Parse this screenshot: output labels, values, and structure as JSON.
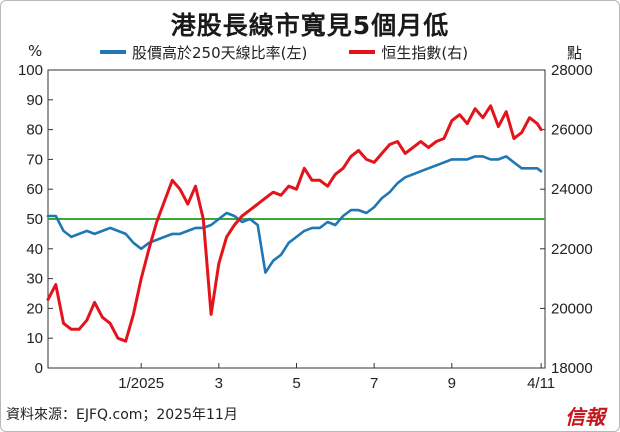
{
  "title": "港股長線市寬見5個月低",
  "source": "資料來源：EJFQ.com；2025年11月",
  "logo": "信報",
  "chart_data": {
    "type": "line",
    "title": "港股長線市寬見5個月低",
    "left_unit": "%",
    "right_unit": "點",
    "x_tick_labels": [
      "1/2025",
      "3",
      "5",
      "7",
      "9",
      "4/11"
    ],
    "x_tick_pos": [
      0.0,
      2.0,
      4.0,
      6.0,
      8.0,
      10.3
    ],
    "x_range": [
      -2.4,
      10.4
    ],
    "y_left": {
      "range": [
        0,
        100
      ],
      "ticks": [
        0,
        10,
        20,
        30,
        40,
        50,
        60,
        70,
        80,
        90,
        100
      ]
    },
    "y_right": {
      "range": [
        18000,
        28000
      ],
      "ticks": [
        18000,
        20000,
        22000,
        24000,
        26000,
        28000
      ]
    },
    "reference_line": {
      "value": 50,
      "axis": "left",
      "color": "#3aa935"
    },
    "grid": false,
    "legend_position": "top",
    "series": [
      {
        "name": "股價高於250天線比率(左)",
        "axis": "left",
        "color": "#1f77b4",
        "x": [
          -2.4,
          -2.2,
          -2.0,
          -1.8,
          -1.6,
          -1.4,
          -1.2,
          -1.0,
          -0.8,
          -0.6,
          -0.4,
          -0.2,
          0.0,
          0.2,
          0.4,
          0.6,
          0.8,
          1.0,
          1.2,
          1.4,
          1.6,
          1.8,
          2.0,
          2.2,
          2.4,
          2.6,
          2.8,
          3.0,
          3.2,
          3.4,
          3.6,
          3.8,
          4.0,
          4.2,
          4.4,
          4.6,
          4.8,
          5.0,
          5.2,
          5.4,
          5.6,
          5.8,
          6.0,
          6.2,
          6.4,
          6.6,
          6.8,
          7.0,
          7.2,
          7.4,
          7.6,
          7.8,
          8.0,
          8.2,
          8.4,
          8.6,
          8.8,
          9.0,
          9.2,
          9.4,
          9.6,
          9.8,
          10.0,
          10.2,
          10.3
        ],
        "y": [
          51,
          51,
          46,
          44,
          45,
          46,
          45,
          46,
          47,
          46,
          45,
          42,
          40,
          42,
          43,
          44,
          45,
          45,
          46,
          47,
          47,
          48,
          50,
          52,
          51,
          49,
          50,
          48,
          32,
          36,
          38,
          42,
          44,
          46,
          47,
          47,
          49,
          48,
          51,
          53,
          53,
          52,
          54,
          57,
          59,
          62,
          64,
          65,
          66,
          67,
          68,
          69,
          70,
          70,
          70,
          71,
          71,
          70,
          70,
          71,
          69,
          67,
          67,
          67,
          66
        ]
      },
      {
        "name": "恒生指數(右)",
        "axis": "right",
        "color": "#e3141c",
        "x": [
          -2.4,
          -2.2,
          -2.0,
          -1.8,
          -1.6,
          -1.4,
          -1.2,
          -1.0,
          -0.8,
          -0.6,
          -0.4,
          -0.2,
          0.0,
          0.2,
          0.4,
          0.6,
          0.8,
          1.0,
          1.2,
          1.4,
          1.6,
          1.8,
          2.0,
          2.2,
          2.4,
          2.6,
          2.8,
          3.0,
          3.2,
          3.4,
          3.6,
          3.8,
          4.0,
          4.2,
          4.4,
          4.6,
          4.8,
          5.0,
          5.2,
          5.4,
          5.6,
          5.8,
          6.0,
          6.2,
          6.4,
          6.6,
          6.8,
          7.0,
          7.2,
          7.4,
          7.6,
          7.8,
          8.0,
          8.2,
          8.4,
          8.6,
          8.8,
          9.0,
          9.2,
          9.4,
          9.6,
          9.8,
          10.0,
          10.2,
          10.3
        ],
        "y": [
          20300,
          20800,
          19500,
          19300,
          19300,
          19600,
          20200,
          19700,
          19500,
          19000,
          18900,
          19800,
          21000,
          22000,
          22900,
          23600,
          24300,
          24000,
          23500,
          24100,
          23000,
          19800,
          21500,
          22400,
          22800,
          23100,
          23300,
          23500,
          23700,
          23900,
          23800,
          24100,
          24000,
          24700,
          24300,
          24300,
          24100,
          24500,
          24700,
          25100,
          25300,
          25000,
          24900,
          25200,
          25500,
          25600,
          25200,
          25400,
          25600,
          25400,
          25600,
          25700,
          26300,
          26500,
          26200,
          26700,
          26400,
          26800,
          26100,
          26600,
          25700,
          25900,
          26400,
          26200,
          26000
        ]
      }
    ]
  }
}
